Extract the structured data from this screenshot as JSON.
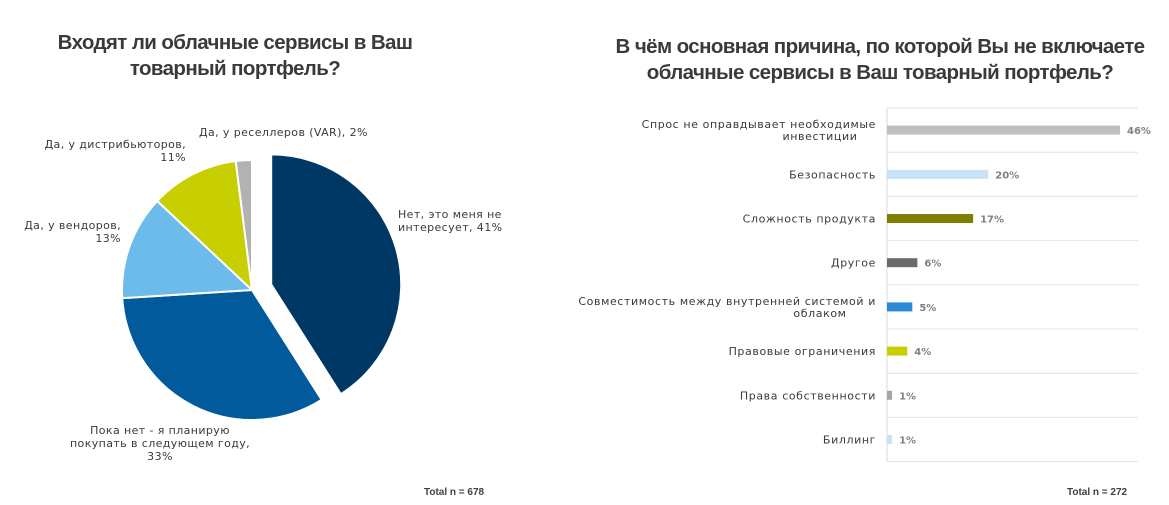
{
  "chart_data": [
    {
      "type": "pie",
      "title": "Входят ли облачные сервисы в Ваш товарный портфель?",
      "labels": [
        "Нет, это меня не интересует, 41%",
        "Пока нет - я планирую покупать в следующем году, 33%",
        "Да, у вендоров, 13%",
        "Да, у дистрибьюторов, 11%",
        "Да, у реселлеров (VAR), 2%"
      ],
      "values": [
        41,
        33,
        13,
        11,
        2
      ],
      "colors": [
        "#003865",
        "#005a9c",
        "#6cbbea",
        "#c8cf00",
        "#b2b2b2"
      ],
      "exploded": [
        true,
        false,
        false,
        false,
        false
      ],
      "total": "Total n = 678"
    },
    {
      "type": "bar",
      "orientation": "horizontal",
      "title": "В чём основная причина, по которой Вы не включаете облачные сервисы в Ваш товарный портфель?",
      "categories": [
        "Спрос не оправдывает необходимые инвестиции",
        "Безопасность",
        "Сложность продукта",
        "Другое",
        "Совместимость между внутренней системой и облаком",
        "Правовые ограничения",
        "Права собственности",
        "Биллинг"
      ],
      "values": [
        46,
        20,
        17,
        6,
        5,
        4,
        1,
        1
      ],
      "value_labels": [
        "46%",
        "20%",
        "17%",
        "6%",
        "5%",
        "4%",
        "1%",
        "1%"
      ],
      "colors": [
        "#bfbfbf",
        "#c8e3f6",
        "#7f8000",
        "#6b6b6b",
        "#2b8ad8",
        "#c8cf00",
        "#a6a6a6",
        "#c8e3f6"
      ],
      "xlim": [
        0,
        46
      ],
      "gridlines": true,
      "total": "Total n = 272"
    }
  ],
  "pie_labels": [
    [
      "Нет, это меня не",
      "интересует, 41%"
    ],
    [
      "Пока нет - я планирую",
      "покупать в следующем году,",
      "33%"
    ],
    [
      "Да, у вендоров,",
      "13%"
    ],
    [
      "Да, у дистрибьюторов,",
      "11%"
    ],
    [
      "Да, у реселлеров (VAR), 2%"
    ]
  ],
  "bar_labels": [
    [
      "Спрос не оправдывает необходимые",
      "инвестиции"
    ],
    [
      "Безопасность"
    ],
    [
      "Сложность продукта"
    ],
    [
      "Другое"
    ],
    [
      "Совместимость между внутренней системой и",
      "облаком"
    ],
    [
      "Правовые ограничения"
    ],
    [
      "Права собственности"
    ],
    [
      "Биллинг"
    ]
  ]
}
